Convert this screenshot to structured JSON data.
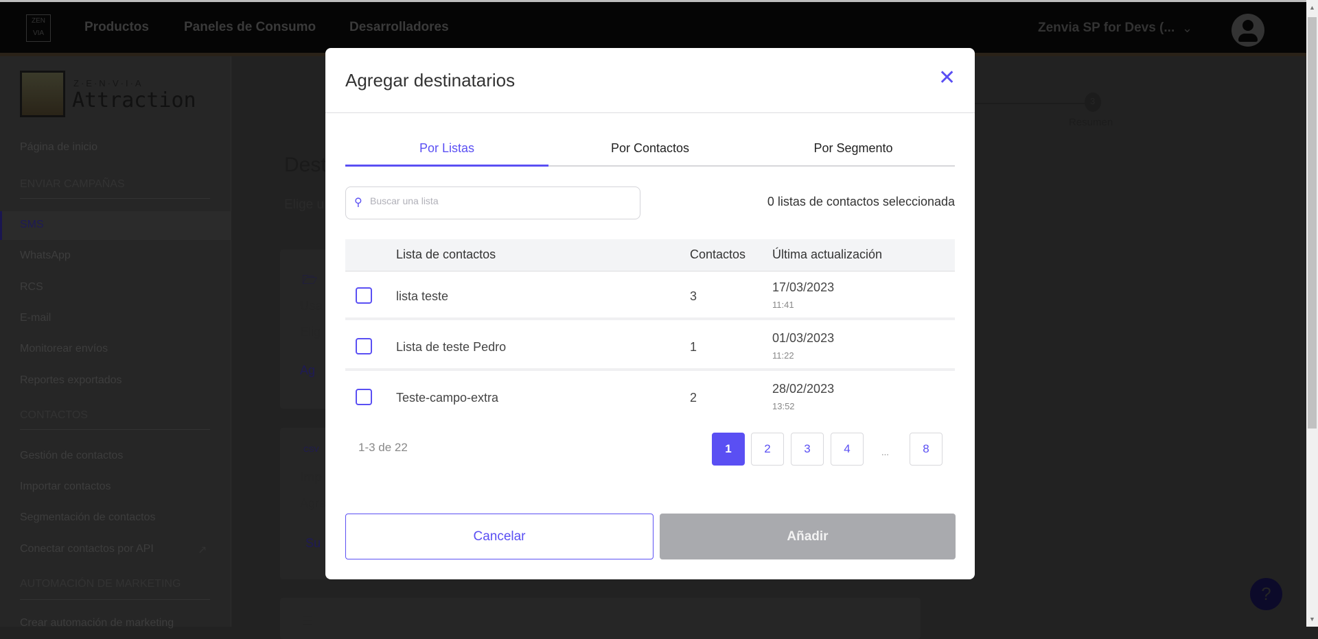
{
  "topbar": {
    "logo_text": "ZEN VIA",
    "nav": [
      "Productos",
      "Paneles de Consumo",
      "Desarrolladores"
    ],
    "account": "Zenvia SP for Devs (..."
  },
  "sidebar": {
    "brand_sub": "Z·E·N·V·I·A",
    "brand_name": "Attraction",
    "home": "Página de inicio",
    "section1": "ENVIAR CAMPAÑAS",
    "channels": [
      "SMS",
      "WhatsApp",
      "RCS",
      "E-mail",
      "Monitorear envíos",
      "Reportes exportados"
    ],
    "section2": "CONTACTOS",
    "contacts": [
      "Gestión de contactos",
      "Importar contactos",
      "Segmentación de contactos",
      "Conectar contactos por API"
    ],
    "section3": "AUTOMACIÓN DE MARKETING",
    "automation": [
      "Crear automación de marketing"
    ]
  },
  "main": {
    "title": "Dest",
    "subtitle": "Elige u",
    "card1_title": "Usa",
    "card1_text": "Elig",
    "card1_btn": "Ag",
    "card2_title": "Imp",
    "card2_text": "Agre",
    "card2_btn": "Su",
    "step_number": "3",
    "step_label": "Resumen"
  },
  "modal": {
    "title": "Agregar destinatarios",
    "tabs": [
      "Por Listas",
      "Por Contactos",
      "Por Segmento"
    ],
    "search_placeholder": "Buscar una lista",
    "selected_count": "0 listas de contactos seleccionada",
    "columns": [
      "Lista de contactos",
      "Contactos",
      "Última actualización"
    ],
    "rows": [
      {
        "name": "lista teste",
        "contacts": "3",
        "date": "17/03/2023",
        "time": "11:41"
      },
      {
        "name": "Lista de teste Pedro",
        "contacts": "1",
        "date": "01/03/2023",
        "time": "11:22"
      },
      {
        "name": "Teste-campo-extra",
        "contacts": "2",
        "date": "28/02/2023",
        "time": "13:52"
      }
    ],
    "range": "1-3 de 22",
    "pages": [
      "1",
      "2",
      "3",
      "4",
      "8"
    ],
    "ellipsis": "...",
    "current_page": "1",
    "cancel": "Cancelar",
    "add": "Añadir"
  },
  "colors": {
    "accent": "#5a4ff3",
    "disabled": "#a9aaae"
  }
}
